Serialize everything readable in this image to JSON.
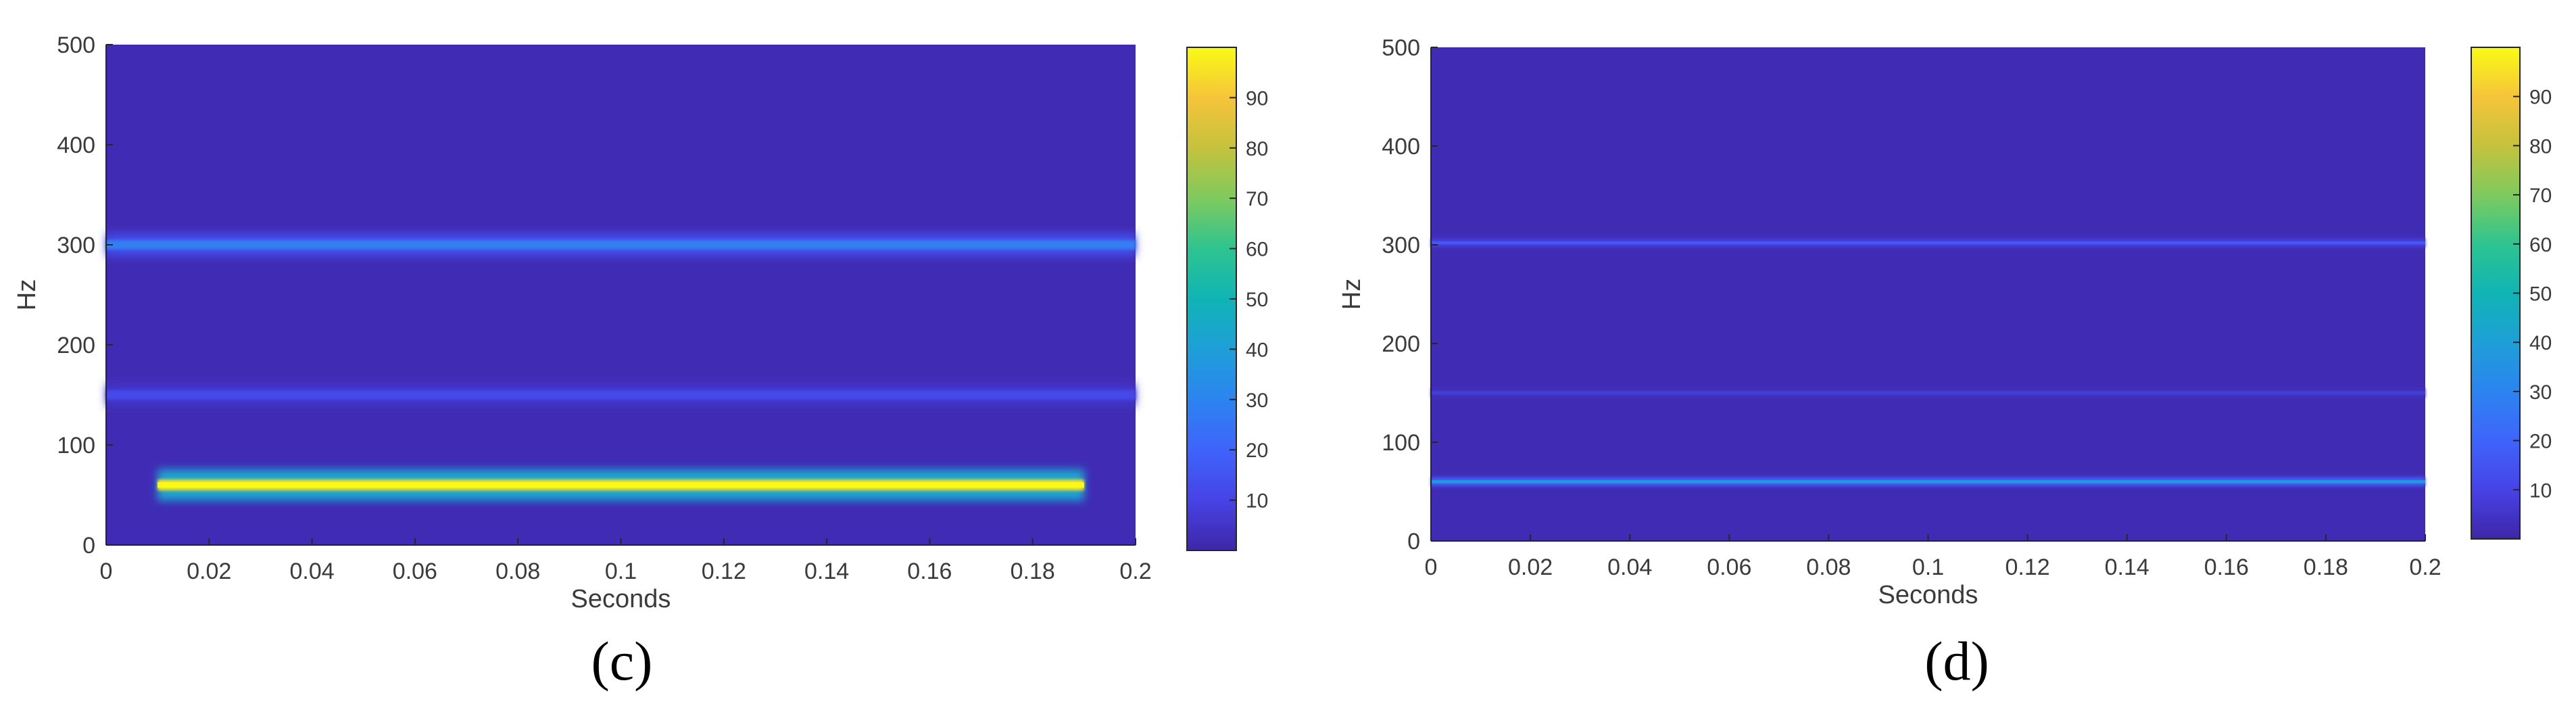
{
  "chart_data": [
    {
      "type": "heatmap",
      "panel_label": "(c)",
      "xlabel": "Seconds",
      "ylabel": "Hz",
      "xlim": [
        0,
        0.2
      ],
      "ylim": [
        0,
        500
      ],
      "x_ticks": [
        "0",
        "0.02",
        "0.04",
        "0.06",
        "0.08",
        "0.1",
        "0.12",
        "0.14",
        "0.16",
        "0.18",
        "0.2"
      ],
      "y_ticks": [
        "0",
        "100",
        "200",
        "300",
        "400",
        "500"
      ],
      "colorbar": {
        "range": [
          0,
          100
        ],
        "ticks": [
          "10",
          "20",
          "30",
          "40",
          "50",
          "60",
          "70",
          "80",
          "90"
        ]
      },
      "background_level": 2,
      "bands": [
        {
          "freq_hz": 60,
          "time_start": 0.01,
          "time_end": 0.19,
          "intensity": 95
        },
        {
          "freq_hz": 150,
          "time_start": 0.0,
          "time_end": 0.2,
          "intensity": 12
        },
        {
          "freq_hz": 300,
          "time_start": 0.0,
          "time_end": 0.2,
          "intensity": 28
        }
      ]
    },
    {
      "type": "heatmap",
      "panel_label": "(d)",
      "xlabel": "Seconds",
      "ylabel": "Hz",
      "xlim": [
        0,
        0.2
      ],
      "ylim": [
        0,
        500
      ],
      "x_ticks": [
        "0",
        "0.02",
        "0.04",
        "0.06",
        "0.08",
        "0.1",
        "0.12",
        "0.14",
        "0.16",
        "0.18",
        "0.2"
      ],
      "y_ticks": [
        "0",
        "100",
        "200",
        "300",
        "400",
        "500"
      ],
      "colorbar": {
        "range": [
          0,
          100
        ],
        "ticks": [
          "10",
          "20",
          "30",
          "40",
          "50",
          "60",
          "70",
          "80",
          "90"
        ]
      },
      "background_level": 2,
      "bands": [
        {
          "freq_hz": 60,
          "time_start": 0.0,
          "time_end": 0.2,
          "intensity": 35
        },
        {
          "freq_hz": 150,
          "time_start": 0.0,
          "time_end": 0.2,
          "intensity": 8
        },
        {
          "freq_hz": 302,
          "time_start": 0.0,
          "time_end": 0.2,
          "intensity": 16
        }
      ]
    }
  ],
  "colors": {
    "parula": [
      "#3e26a8",
      "#4743e6",
      "#3f64fb",
      "#2c84f0",
      "#1e9fd8",
      "#10b4b4",
      "#2ec490",
      "#7fca5e",
      "#c5c23d",
      "#f6c43a",
      "#f9fb15"
    ],
    "axis": "#262626",
    "background": "#ffffff"
  }
}
